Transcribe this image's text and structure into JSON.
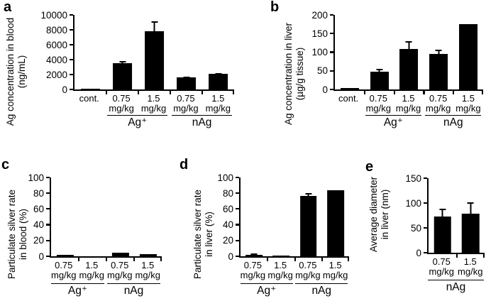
{
  "figure": {
    "background_color": "#ffffff",
    "bar_color": "#000000",
    "axis_color": "#000000",
    "text_color": "#000000"
  },
  "chart_data": [
    {
      "type": "bar",
      "panel_label": "a",
      "ylabel_lines": [
        "Ag concentration in blood",
        "(ng/mL)"
      ],
      "ylim": [
        0,
        10000
      ],
      "yticks": [
        0,
        2000,
        4000,
        6000,
        8000,
        10000
      ],
      "categories": [
        [
          "cont.",
          ""
        ],
        [
          "0.75",
          "mg/kg"
        ],
        [
          "1.5",
          "mg/kg"
        ],
        [
          "0.75",
          "mg/kg"
        ],
        [
          "1.5",
          "mg/kg"
        ]
      ],
      "values": [
        100,
        3550,
        7850,
        1600,
        2100
      ],
      "errors": [
        0,
        280,
        1300,
        150,
        130
      ],
      "groups": [
        {
          "label": "Ag⁺",
          "start": 1,
          "span": 2
        },
        {
          "label": "nAg",
          "start": 3,
          "span": 2
        }
      ],
      "grid": false,
      "legend": "none"
    },
    {
      "type": "bar",
      "panel_label": "b",
      "ylabel_lines": [
        "Ag concentration in liver",
        "(µg/g tissue)"
      ],
      "ylim": [
        0,
        200
      ],
      "yticks": [
        0,
        50,
        100,
        150,
        200
      ],
      "categories": [
        [
          "cont.",
          ""
        ],
        [
          "0.75",
          "mg/kg"
        ],
        [
          "1.5",
          "mg/kg"
        ],
        [
          "0.75",
          "mg/kg"
        ],
        [
          "1.5",
          "mg/kg"
        ]
      ],
      "values": [
        4,
        47,
        108,
        95,
        176
      ],
      "errors": [
        0,
        8,
        22,
        12,
        0
      ],
      "groups": [
        {
          "label": "Ag⁺",
          "start": 1,
          "span": 2
        },
        {
          "label": "nAg",
          "start": 3,
          "span": 2
        }
      ],
      "grid": false,
      "legend": "none"
    },
    {
      "type": "bar",
      "panel_label": "c",
      "ylabel_lines": [
        "Particulate silver rate",
        "in blood (%)"
      ],
      "ylim": [
        0,
        100
      ],
      "yticks": [
        0,
        20,
        40,
        60,
        80,
        100
      ],
      "categories": [
        [
          "0.75",
          "mg/kg"
        ],
        [
          "1.5",
          "mg/kg"
        ],
        [
          "0.75",
          "mg/kg"
        ],
        [
          "1.5",
          "mg/kg"
        ]
      ],
      "values": [
        1.5,
        0.4,
        4.5,
        2.5
      ],
      "errors": [
        0,
        0,
        0,
        0
      ],
      "groups": [
        {
          "label": "Ag⁺",
          "start": 0,
          "span": 2
        },
        {
          "label": "nAg",
          "start": 2,
          "span": 2
        }
      ],
      "grid": false,
      "legend": "none"
    },
    {
      "type": "bar",
      "panel_label": "d",
      "ylabel_lines": [
        "Particulate silver rate",
        "in liver (%)"
      ],
      "ylim": [
        0,
        100
      ],
      "yticks": [
        0,
        20,
        40,
        60,
        80,
        100
      ],
      "categories": [
        [
          "0.75",
          "mg/kg"
        ],
        [
          "1.5",
          "mg/kg"
        ],
        [
          "0.75",
          "mg/kg"
        ],
        [
          "1.5",
          "mg/kg"
        ]
      ],
      "values": [
        2,
        0.5,
        77,
        84
      ],
      "errors": [
        1.2,
        0,
        3,
        0
      ],
      "groups": [
        {
          "label": "Ag⁺",
          "start": 0,
          "span": 2
        },
        {
          "label": "nAg",
          "start": 2,
          "span": 2
        }
      ],
      "grid": false,
      "legend": "none"
    },
    {
      "type": "bar",
      "panel_label": "e",
      "ylabel_lines": [
        "Average diameter",
        "in liver (nm)"
      ],
      "ylim": [
        0,
        150
      ],
      "yticks": [
        0,
        50,
        100,
        150
      ],
      "categories": [
        [
          "0.75",
          "mg/kg"
        ],
        [
          "1.5",
          "mg/kg"
        ]
      ],
      "values": [
        73,
        78
      ],
      "errors": [
        16,
        23
      ],
      "groups": [
        {
          "label": "nAg",
          "start": 0,
          "span": 2
        }
      ],
      "grid": false,
      "legend": "none"
    }
  ]
}
